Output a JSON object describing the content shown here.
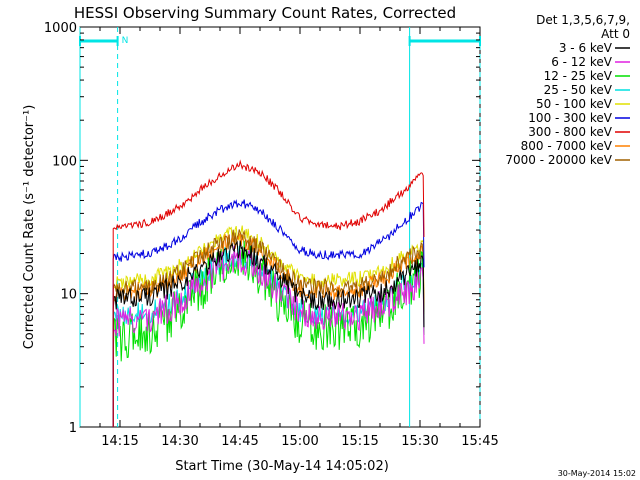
{
  "chart_data": {
    "type": "line",
    "title": "HESSI Observing Summary Count Rates, Corrected",
    "xlabel": "Start Time (30-May-14 14:05:02)",
    "ylabel": "Corrected Count Rate (s⁻¹ detector⁻¹)",
    "y_scale": "log",
    "xlim_minutes_after_14_05_02": [
      0,
      100
    ],
    "ylim": [
      1,
      1000
    ],
    "x_ticks": [
      {
        "label": "14:15",
        "t": 10
      },
      {
        "label": "14:30",
        "t": 25
      },
      {
        "label": "14:45",
        "t": 40
      },
      {
        "label": "15:00",
        "t": 55
      },
      {
        "label": "15:15",
        "t": 70
      },
      {
        "label": "15:30",
        "t": 85
      },
      {
        "label": "15:45",
        "t": 100
      }
    ],
    "y_ticks": [
      {
        "label": "1",
        "v": 1
      },
      {
        "label": "10",
        "v": 10
      },
      {
        "label": "100",
        "v": 100
      },
      {
        "label": "1000",
        "v": 1000
      }
    ],
    "legend_header": [
      "Det 1,3,5,6,7,9,",
      "Att 0"
    ],
    "legend_position": "top-right",
    "footer_timestamp": "30-May-2014 15:02",
    "night_marker": "N",
    "night_intervals": [
      {
        "start": 0,
        "end": 9.4,
        "marker": "N"
      },
      {
        "start": 82.4,
        "end": 100,
        "marker": ""
      }
    ],
    "x": [
      8.3,
      10,
      15,
      20,
      25,
      30,
      35,
      40,
      45,
      50,
      55,
      60,
      65,
      70,
      75,
      80,
      85,
      86
    ],
    "series": [
      {
        "name": "3 - 6 keV",
        "color": "#000000",
        "values": [
          9,
          9,
          9.5,
          10,
          12.5,
          15,
          19,
          22,
          18,
          13,
          9.5,
          9,
          9,
          9.5,
          10,
          13,
          16,
          16
        ]
      },
      {
        "name": "6 - 12 keV",
        "color": "#e020e0",
        "values": [
          6,
          6,
          6.5,
          7,
          9,
          12,
          16,
          19,
          15,
          10,
          7.5,
          7,
          7,
          7,
          8,
          10,
          12,
          12
        ]
      },
      {
        "name": "12 - 25 keV",
        "color": "#00e000",
        "values": [
          4.5,
          4.5,
          5,
          5.5,
          8,
          11,
          15,
          18,
          14,
          8.5,
          6,
          5.5,
          5.5,
          6,
          7,
          10,
          14,
          14
        ]
      },
      {
        "name": "25 - 50 keV",
        "color": "#00e0e0",
        "values": [
          7,
          7,
          7,
          7.5,
          9.5,
          13,
          17.5,
          20,
          16,
          11,
          7.5,
          7,
          7,
          7.5,
          8.5,
          11,
          14,
          14
        ]
      },
      {
        "name": "50 - 100 keV",
        "color": "#e0e000",
        "values": [
          12,
          12,
          12.5,
          13.5,
          16,
          21,
          26,
          29,
          24,
          17,
          13,
          12.5,
          12.5,
          13,
          14.5,
          18,
          22,
          22
        ]
      },
      {
        "name": "100 - 300 keV",
        "color": "#0000e0",
        "values": [
          18.5,
          18.5,
          19.5,
          21,
          26,
          34,
          43,
          49,
          42,
          30,
          21,
          19.5,
          19.5,
          20,
          24,
          32,
          45,
          45
        ]
      },
      {
        "name": "300 - 800 keV",
        "color": "#e00000",
        "values": [
          31,
          31,
          33,
          37,
          45,
          60,
          78,
          92,
          82,
          58,
          37,
          33,
          32,
          35,
          42,
          56,
          76,
          76
        ]
      },
      {
        "name": "800 - 7000 keV",
        "color": "#ff8000",
        "values": [
          10,
          10,
          10.5,
          11,
          13.5,
          18,
          23,
          26,
          21,
          15,
          11,
          10.5,
          10.5,
          11,
          12.5,
          16,
          20,
          20
        ]
      },
      {
        "name": "7000 - 20000 keV",
        "color": "#a06000",
        "values": [
          10.5,
          10.5,
          11,
          12,
          14.5,
          19,
          24,
          27,
          22,
          15.5,
          11.5,
          11,
          11,
          11.5,
          13,
          17,
          21,
          21
        ]
      }
    ]
  }
}
